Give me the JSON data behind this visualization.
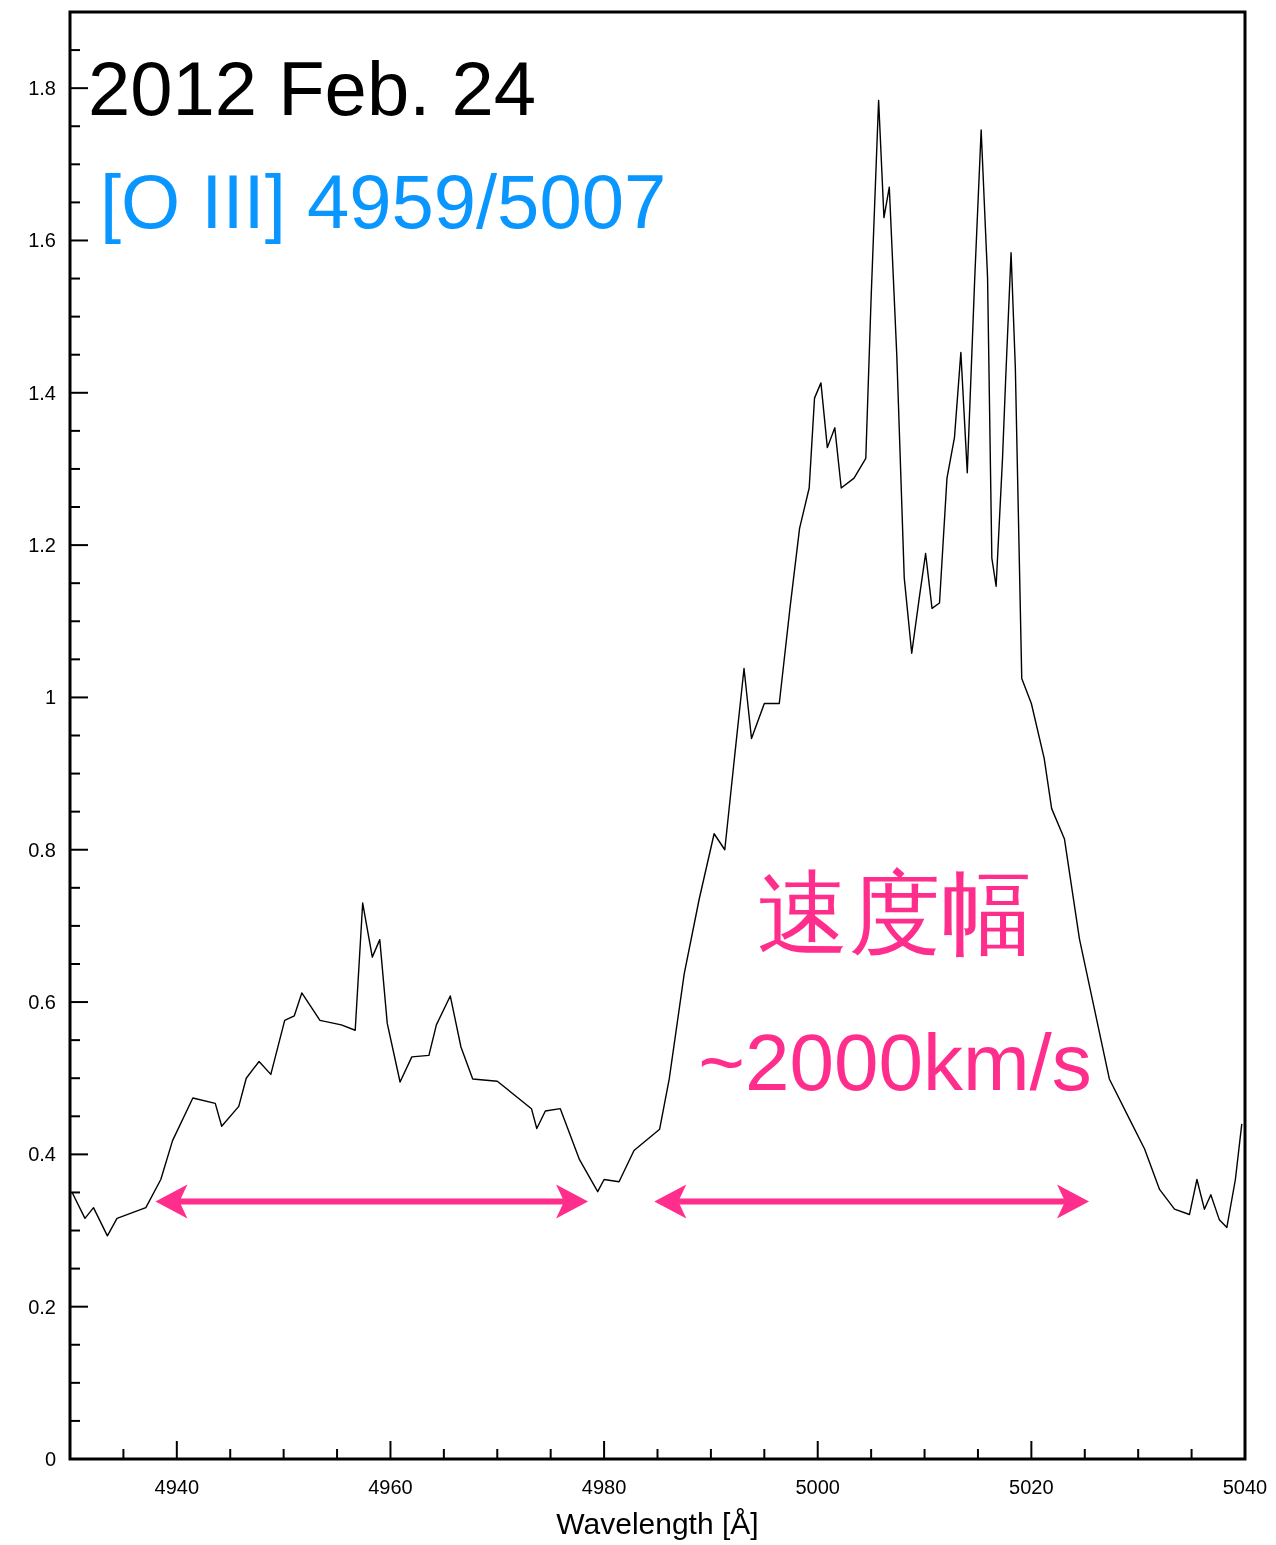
{
  "chart_data": {
    "type": "line",
    "title": "2012 Feb. 24",
    "subtitle": "[O III] 4959/5007",
    "xlabel": "Wavelength [Å]",
    "annotations": [
      "速度幅",
      "~2000km/s"
    ],
    "xlim": [
      4930,
      5040
    ],
    "ylim": [
      0,
      1.9
    ],
    "xticks": [
      {
        "value": 4935,
        "label": null
      },
      4940,
      {
        "value": 4945,
        "label": null
      },
      4960,
      {
        "value": 4950,
        "label": null
      },
      {
        "value": 4955,
        "label": null
      },
      {
        "value": 4965,
        "label": null
      },
      {
        "value": 4970,
        "label": null
      },
      {
        "value": 4975,
        "label": null
      },
      4980,
      {
        "value": 4985,
        "label": null
      },
      {
        "value": 4990,
        "label": null
      },
      {
        "value": 4995,
        "label": null
      },
      5000,
      {
        "value": 5005,
        "label": null
      },
      {
        "value": 5010,
        "label": null
      },
      {
        "value": 5015,
        "label": null
      },
      5020,
      {
        "value": 5025,
        "label": null
      },
      {
        "value": 5030,
        "label": null
      },
      {
        "value": 5035,
        "label": null
      },
      5040
    ],
    "yticks": [
      0,
      {
        "value": 0.05,
        "label": null
      },
      {
        "value": 0.1,
        "label": null
      },
      {
        "value": 0.15,
        "label": null
      },
      0.2,
      {
        "value": 0.25,
        "label": null
      },
      {
        "value": 0.3,
        "label": null
      },
      {
        "value": 0.35,
        "label": null
      },
      0.4,
      {
        "value": 0.45,
        "label": null
      },
      {
        "value": 0.5,
        "label": null
      },
      {
        "value": 0.55,
        "label": null
      },
      0.6,
      {
        "value": 0.65,
        "label": null
      },
      {
        "value": 0.7,
        "label": null
      },
      {
        "value": 0.75,
        "label": null
      },
      0.8,
      {
        "value": 0.85,
        "label": null
      },
      {
        "value": 0.9,
        "label": null
      },
      {
        "value": 0.95,
        "label": null
      },
      1,
      {
        "value": 1.05,
        "label": null
      },
      {
        "value": 1.1,
        "label": null
      },
      {
        "value": 1.15,
        "label": null
      },
      1.2,
      {
        "value": 1.25,
        "label": null
      },
      {
        "value": 1.3,
        "label": null
      },
      {
        "value": 1.35,
        "label": null
      },
      1.4,
      {
        "value": 1.45,
        "label": null
      },
      {
        "value": 1.5,
        "label": null
      },
      {
        "value": 1.55,
        "label": null
      },
      1.6,
      {
        "value": 1.65,
        "label": null
      },
      {
        "value": 1.7,
        "label": null
      },
      {
        "value": 1.75,
        "label": null
      },
      1.8,
      {
        "value": 1.85,
        "label": null
      }
    ],
    "grid": false,
    "series": [
      {
        "color": "#000000",
        "x": [
          4930.2,
          4931.4,
          4932.2,
          4933.5,
          4934.4,
          4937.1,
          4938.5,
          4939.6,
          4941.5,
          4943.6,
          4944.2,
          4945.8,
          4946.5,
          4947.7,
          4948.8,
          4950.1,
          4951.0,
          4951.7,
          4953.4,
          4955.4,
          4956.7,
          4957.4,
          4958.3,
          4959.0,
          4959.7,
          4960.9,
          4962.0,
          4963.6,
          4964.3,
          4965.6,
          4966.6,
          4967.7,
          4970.0,
          4973.2,
          4973.7,
          4974.5,
          4975.9,
          4977.7,
          4979.4,
          4980.0,
          4981.4,
          4982.8,
          4985.2,
          4986.1,
          4987.5,
          4988.9,
          4990.3,
          4991.3,
          4992.2,
          4993.1,
          4993.8,
          4995.0,
          4996.4,
          4997.4,
          4998.3,
          4999.2,
          4999.7,
          5000.3,
          5000.9,
          5001.6,
          5002.2,
          5003.4,
          5004.5,
          5005.0,
          5005.7,
          5006.2,
          5006.7,
          5007.4,
          5008.1,
          5008.8,
          5009.5,
          5010.1,
          5010.7,
          5011.4,
          5012.1,
          5012.8,
          5013.4,
          5014.0,
          5014.7,
          5015.3,
          5015.9,
          5016.3,
          5016.7,
          5017.3,
          5017.6,
          5018.1,
          5018.5,
          5019.1,
          5020.0,
          5021.2,
          5021.9,
          5023.1,
          5024.5,
          5025.9,
          5027.3,
          5029.2,
          5030.6,
          5032.0,
          5033.4,
          5034.8,
          5035.5,
          5036.2,
          5036.8,
          5037.6,
          5038.3,
          5039.1,
          5039.7
        ],
        "values": [
          0.35,
          0.316,
          0.33,
          0.293,
          0.316,
          0.33,
          0.367,
          0.418,
          0.474,
          0.467,
          0.437,
          0.463,
          0.5,
          0.522,
          0.505,
          0.576,
          0.582,
          0.612,
          0.576,
          0.57,
          0.563,
          0.73,
          0.659,
          0.682,
          0.572,
          0.495,
          0.528,
          0.53,
          0.57,
          0.608,
          0.541,
          0.499,
          0.496,
          0.46,
          0.434,
          0.457,
          0.46,
          0.393,
          0.351,
          0.367,
          0.364,
          0.405,
          0.433,
          0.499,
          0.637,
          0.735,
          0.821,
          0.8,
          0.92,
          1.038,
          0.946,
          0.992,
          0.992,
          1.117,
          1.222,
          1.275,
          1.393,
          1.413,
          1.328,
          1.354,
          1.275,
          1.288,
          1.314,
          1.525,
          1.784,
          1.63,
          1.67,
          1.45,
          1.157,
          1.058,
          1.13,
          1.189,
          1.117,
          1.124,
          1.288,
          1.341,
          1.453,
          1.295,
          1.551,
          1.745,
          1.551,
          1.183,
          1.146,
          1.314,
          1.42,
          1.584,
          1.433,
          1.025,
          0.992,
          0.92,
          0.854,
          0.814,
          0.683,
          0.591,
          0.499,
          0.446,
          0.407,
          0.354,
          0.328,
          0.321,
          0.367,
          0.328,
          0.347,
          0.314,
          0.304,
          0.367,
          0.44
        ]
      }
    ]
  }
}
